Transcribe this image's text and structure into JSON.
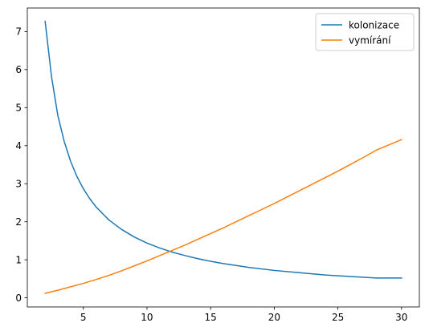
{
  "chart_data": {
    "type": "line",
    "title": "",
    "xlabel": "",
    "ylabel": "",
    "xlim": [
      0.6,
      31.4
    ],
    "ylim": [
      -0.24,
      7.62
    ],
    "xticks": [
      5,
      10,
      15,
      20,
      25,
      30
    ],
    "yticks": [
      0,
      1,
      2,
      3,
      4,
      5,
      6,
      7
    ],
    "grid": false,
    "legend_position": "top-right",
    "series": [
      {
        "name": "kolonizace",
        "color": "#1f77b4",
        "x": [
          2,
          2.5,
          3,
          3.5,
          4,
          4.5,
          5,
          5.5,
          6,
          7,
          8,
          9,
          10,
          11,
          12,
          13,
          14,
          15,
          16,
          18,
          20,
          22,
          24,
          26,
          28,
          30
        ],
        "y": [
          7.27,
          5.82,
          4.79,
          4.11,
          3.59,
          3.19,
          2.87,
          2.61,
          2.39,
          2.05,
          1.8,
          1.6,
          1.44,
          1.31,
          1.2,
          1.11,
          1.03,
          0.96,
          0.9,
          0.8,
          0.72,
          0.66,
          0.6,
          0.56,
          0.52,
          0.52
        ]
      },
      {
        "name": "vymírání",
        "color": "#ff7f0e",
        "x": [
          2,
          3,
          4,
          5,
          6,
          7,
          8,
          9,
          10,
          11,
          12,
          13,
          14,
          15,
          16,
          17,
          18,
          19,
          20,
          21,
          22,
          23,
          24,
          25,
          26,
          27,
          28,
          29,
          30
        ],
        "y": [
          0.12,
          0.2,
          0.29,
          0.38,
          0.48,
          0.59,
          0.71,
          0.84,
          0.97,
          1.11,
          1.25,
          1.39,
          1.54,
          1.69,
          1.84,
          2.0,
          2.16,
          2.32,
          2.48,
          2.65,
          2.82,
          2.99,
          3.16,
          3.33,
          3.51,
          3.69,
          3.88,
          4.02,
          4.16
        ]
      }
    ]
  }
}
